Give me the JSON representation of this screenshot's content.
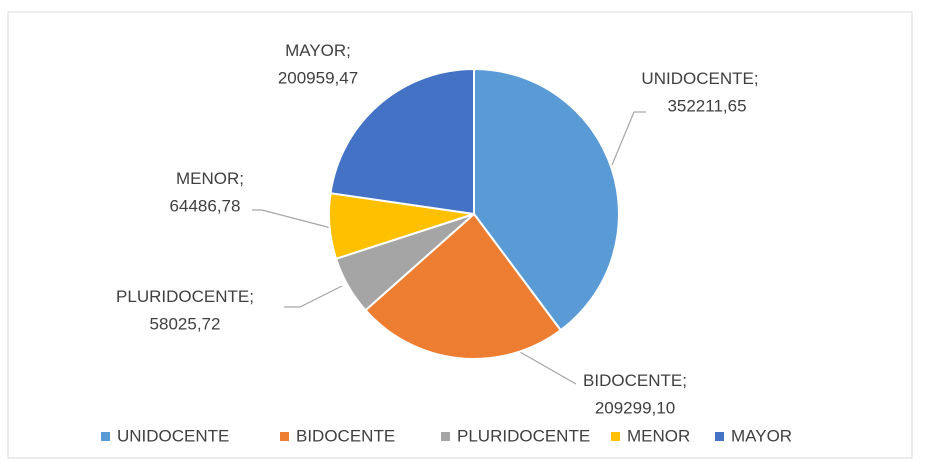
{
  "chart_data": {
    "type": "pie",
    "categories": [
      "UNIDOCENTE",
      "BIDOCENTE",
      "PLURIDOCENTE",
      "MENOR",
      "MAYOR"
    ],
    "values": [
      352211.65,
      209299.1,
      58025.72,
      64486.78,
      200959.47
    ],
    "value_labels": [
      "352211,65",
      "209299,10",
      "58025,72",
      "64486,78",
      "200959,47"
    ],
    "label_separator": ";",
    "colors": [
      "#5b9bd5",
      "#ed7d31",
      "#a5a5a5",
      "#ffc000",
      "#4472c4"
    ],
    "legend": "bottom"
  }
}
